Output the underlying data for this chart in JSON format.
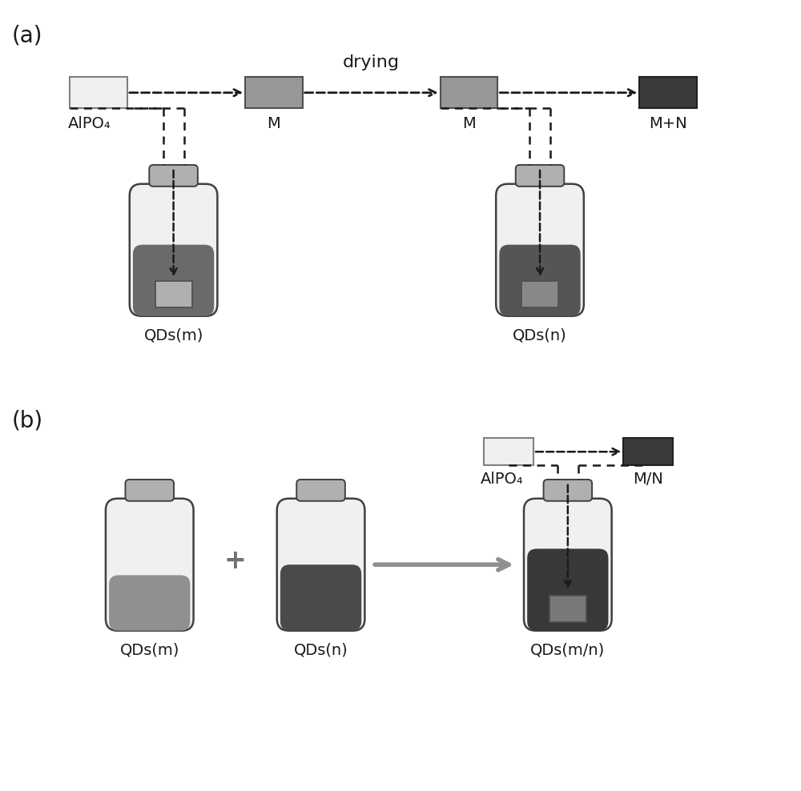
{
  "bg_color": "#ffffff",
  "label_a": "(a)",
  "label_b": "(b)",
  "font_size_label": 20,
  "font_size_text": 14,
  "drying_text": "drying",
  "alpo4_text_a": "AlPO₄",
  "alpo4_text_b": "AlPO₄",
  "M_text1": "M",
  "M_text2": "M",
  "MN_text": "M+N",
  "MN_slash": "M/N",
  "QDsm_a": "QDs(m)",
  "QDsn_a": "QDs(n)",
  "QDsm_b": "QDs(m)",
  "QDsn_b": "QDs(n)",
  "QDsmn_b": "QDs(m/n)",
  "c_white": "#f0f0f0",
  "c_lgray": "#b0b0b0",
  "c_mgray": "#909090",
  "c_dgray": "#505050",
  "c_vdgray": "#303030",
  "c_border": "#404040",
  "c_black": "#1a1a1a"
}
